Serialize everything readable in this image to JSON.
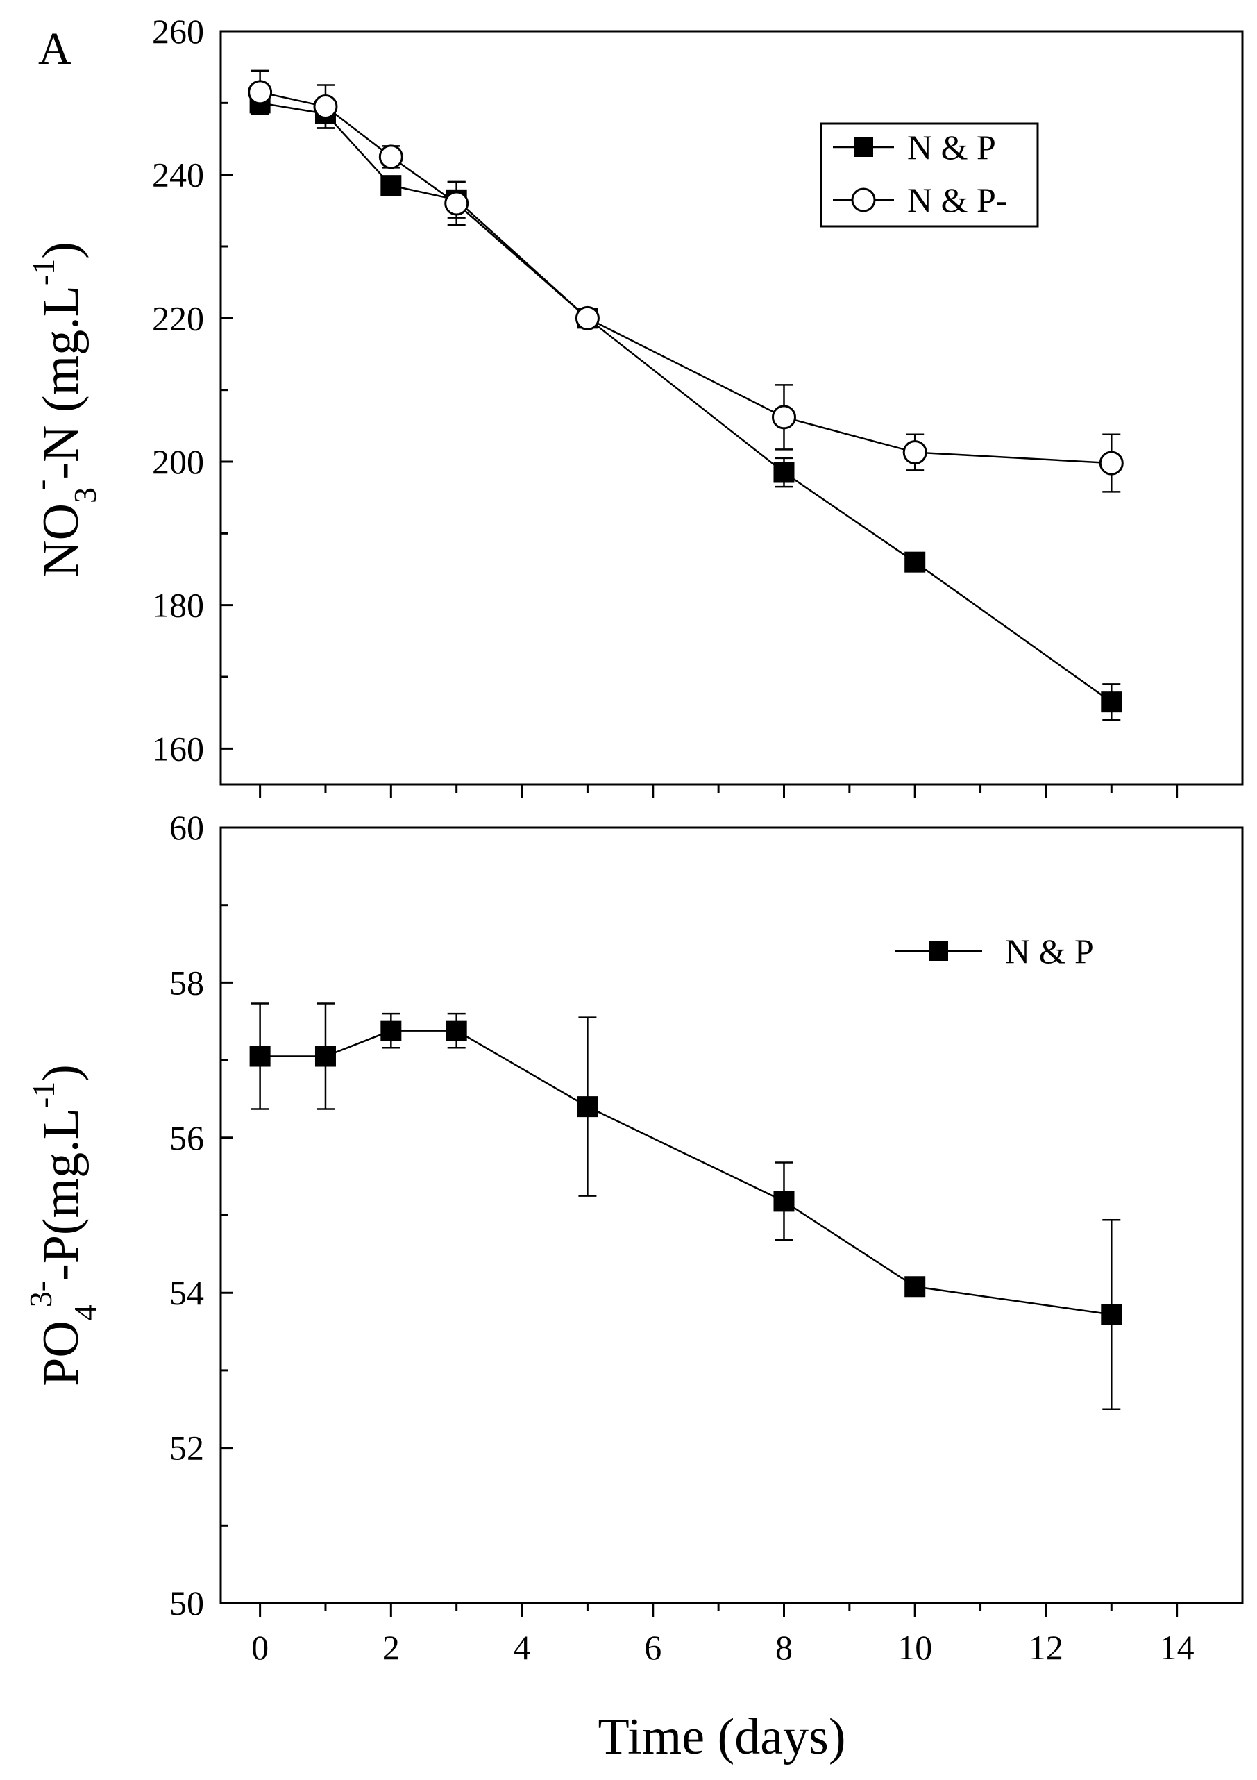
{
  "panel_label": "A",
  "x_axis": {
    "title": "Time (days)",
    "ticks": [
      0,
      2,
      4,
      6,
      8,
      10,
      12,
      14
    ],
    "tick_labels": [
      "0",
      "2",
      "4",
      "6",
      "8",
      "10",
      "12",
      "14"
    ],
    "range": [
      -0.6,
      15.0
    ]
  },
  "chart_data": [
    {
      "type": "line",
      "panel": "top",
      "ylabel": {
        "main": "NO",
        "sub": "3",
        "sup": "-",
        "rest": "-N (mg.L",
        "sup2": "-1",
        "close": ")"
      },
      "xlim": [
        -0.5,
        14.5
      ],
      "ylim": [
        155,
        260
      ],
      "y_ticks": [
        160,
        180,
        200,
        220,
        240,
        260
      ],
      "y_tick_labels": [
        "160",
        "180",
        "200",
        "220",
        "240",
        "260"
      ],
      "legend_position": "top-right",
      "series": [
        {
          "name": "N & P",
          "marker": "filled-square",
          "x": [
            0,
            1,
            2,
            3,
            5,
            8,
            10,
            13
          ],
          "y": [
            250,
            248.5,
            238.5,
            236.5,
            220,
            198.5,
            186,
            166.5
          ],
          "error": [
            1.5,
            2.0,
            1.0,
            2.5,
            1.0,
            2.0,
            0.5,
            2.5
          ]
        },
        {
          "name": "N & P-",
          "marker": "open-circle",
          "x": [
            0,
            1,
            2,
            3,
            5,
            8,
            10,
            13
          ],
          "y": [
            251.5,
            249.5,
            242.5,
            236,
            220,
            206.2,
            201.3,
            199.8
          ],
          "error": [
            3.0,
            3.0,
            1.5,
            3.0,
            1.0,
            4.5,
            2.5,
            4.0
          ]
        }
      ]
    },
    {
      "type": "line",
      "panel": "bottom",
      "ylabel": {
        "main": "PO",
        "sub": "4",
        "sup": "3-",
        "rest": "-P(mg.L",
        "sup2": "-1",
        "close": ")"
      },
      "xlim": [
        -0.5,
        14.5
      ],
      "ylim": [
        50,
        60
      ],
      "y_ticks": [
        50,
        52,
        54,
        56,
        58,
        60
      ],
      "y_tick_labels": [
        "50",
        "52",
        "54",
        "56",
        "58",
        "60"
      ],
      "legend_position": "top-right",
      "series": [
        {
          "name": "N & P",
          "marker": "filled-square",
          "x": [
            0,
            1,
            2,
            3,
            5,
            8,
            10,
            13
          ],
          "y": [
            57.05,
            57.05,
            57.38,
            57.38,
            56.4,
            55.18,
            54.08,
            53.72
          ],
          "error": [
            0.68,
            0.68,
            0.22,
            0.22,
            1.15,
            0.5,
            0.05,
            1.22
          ]
        }
      ]
    }
  ]
}
